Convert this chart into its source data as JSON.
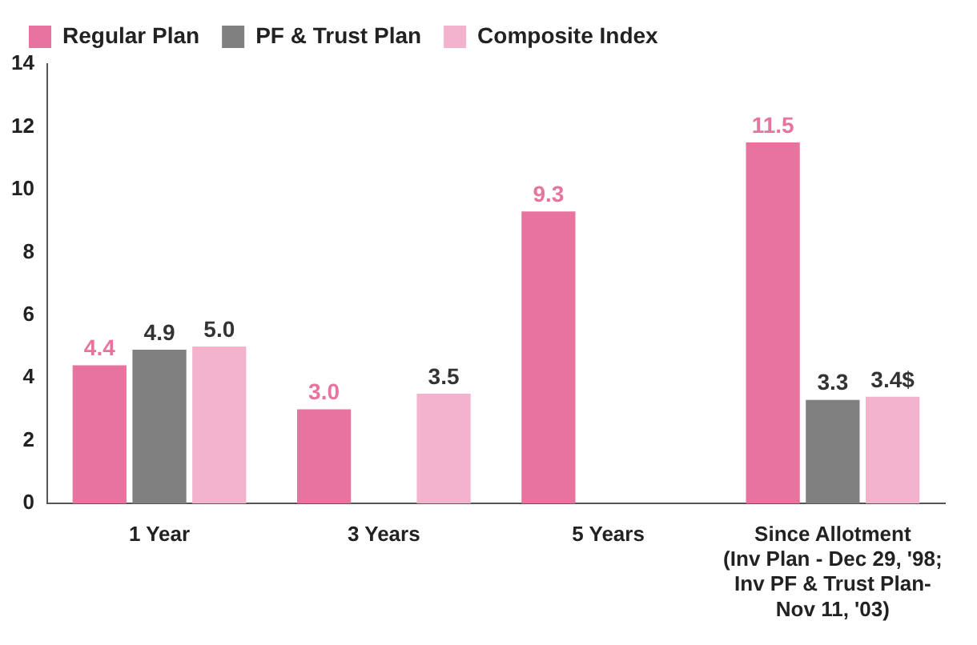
{
  "chart_data": {
    "type": "bar",
    "categories": [
      "1 Year",
      "3 Years",
      "5 Years",
      "Since Allotment\n(Inv Plan - Dec 29, '98;\nInv PF & Trust Plan-\nNov 11, '03)"
    ],
    "series": [
      {
        "name": "Regular Plan",
        "color": "#e8739f",
        "values": [
          4.4,
          3.0,
          9.3,
          11.5
        ],
        "value_labels": [
          "4.4",
          "3.0",
          "9.3",
          "11.5"
        ]
      },
      {
        "name": "PF & Trust Plan",
        "color": "#808080",
        "values": [
          4.9,
          null,
          null,
          3.3
        ],
        "value_labels": [
          "4.9",
          null,
          null,
          "3.3"
        ]
      },
      {
        "name": "Composite Index",
        "color": "#f4b3cc",
        "values": [
          5.0,
          3.5,
          null,
          3.4
        ],
        "value_labels": [
          "5.0",
          "3.5",
          null,
          "3.4$"
        ]
      }
    ],
    "ylim": [
      0,
      14
    ],
    "yticks": [
      0,
      2,
      4,
      6,
      8,
      10,
      12,
      14
    ],
    "grid": false,
    "legend": "top"
  }
}
